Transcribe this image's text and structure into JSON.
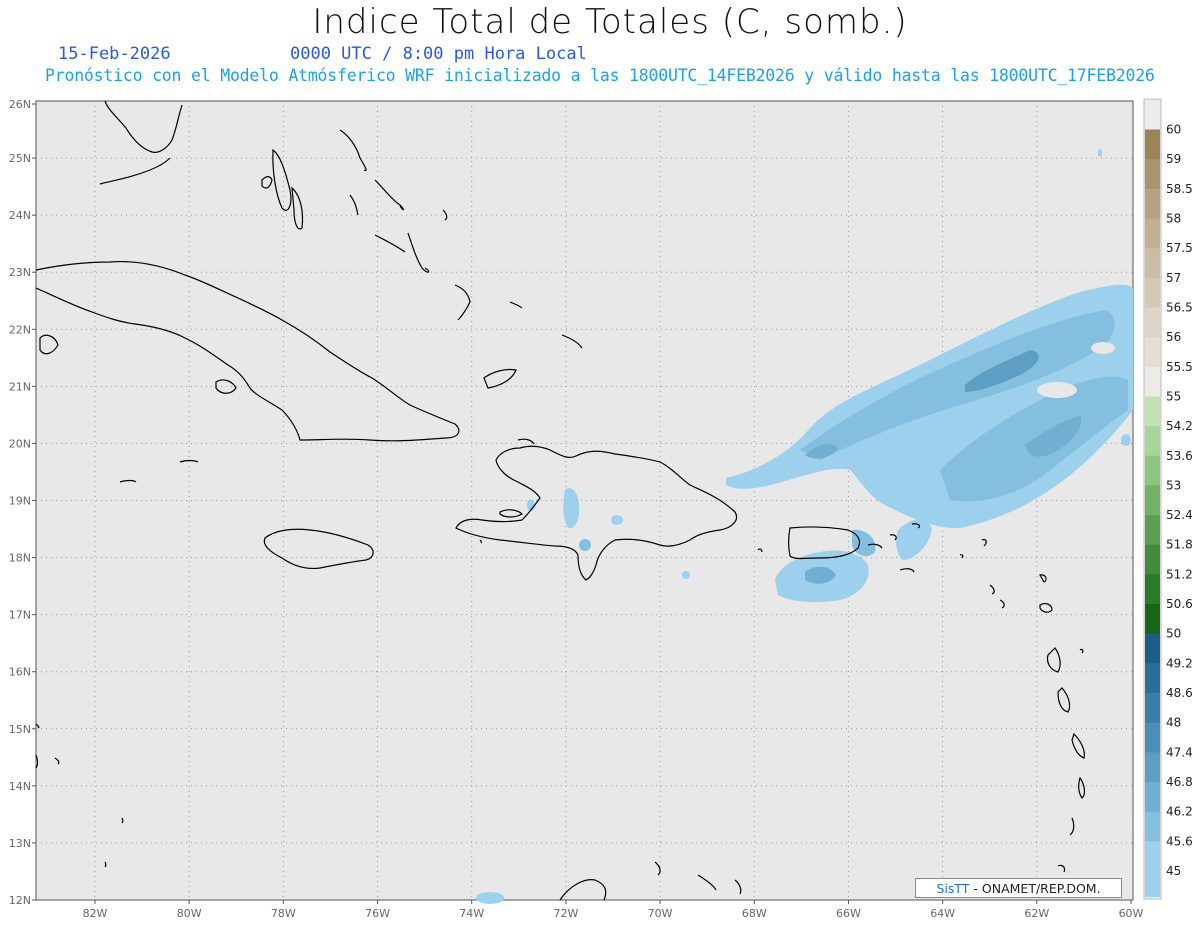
{
  "header": {
    "title": "Indice Total de Totales (C, somb.)",
    "date": "15-Feb-2026",
    "time": "0000 UTC / 8:00 pm Hora Local",
    "forecast": "Pronóstico con el Modelo Atmósferico WRF inicializado a las 1800UTC_14FEB2026 y válido hasta las  1800UTC_17FEB2026"
  },
  "map": {
    "lat_labels": [
      "26N",
      "25N",
      "24N",
      "23N",
      "22N",
      "21N",
      "20N",
      "19N",
      "18N",
      "17N",
      "16N",
      "15N",
      "14N",
      "13N",
      "12N"
    ],
    "lon_labels": [
      "82W",
      "80W",
      "78W",
      "76W",
      "74W",
      "72W",
      "70W",
      "68W",
      "66W",
      "64W",
      "62W",
      "60W"
    ],
    "colors": {
      "background": "#e8e8e8",
      "grid": "#9a9a9a",
      "coast": "#000000"
    }
  },
  "colorbar": {
    "levels": [
      "60",
      "59",
      "58.5",
      "58",
      "57.5",
      "57",
      "56.5",
      "56",
      "55.5",
      "55",
      "54.2",
      "53.6",
      "53",
      "52.4",
      "51.8",
      "51.2",
      "50.6",
      "50",
      "49.2",
      "48.6",
      "48",
      "47.4",
      "46.8",
      "46.2",
      "45.6",
      "45"
    ],
    "colors": [
      "#9c8358",
      "#aa9370",
      "#b6a283",
      "#c1b093",
      "#cbbda3",
      "#d5c9b4",
      "#ddd4c5",
      "#e5ded3",
      "#ecece5",
      "#c2e2b4",
      "#a6d49a",
      "#8cc480",
      "#72b266",
      "#5aa04e",
      "#418c38",
      "#2c7a26",
      "#176617",
      "#1b5f86",
      "#2a6f96",
      "#3a7fa6",
      "#4b8fb6",
      "#5d9fc4",
      "#70afd2",
      "#85bfdf",
      "#9dd0ec"
    ]
  },
  "credit": {
    "logo": "SisTT",
    "text": "- ONAMET/REP.DOM."
  }
}
